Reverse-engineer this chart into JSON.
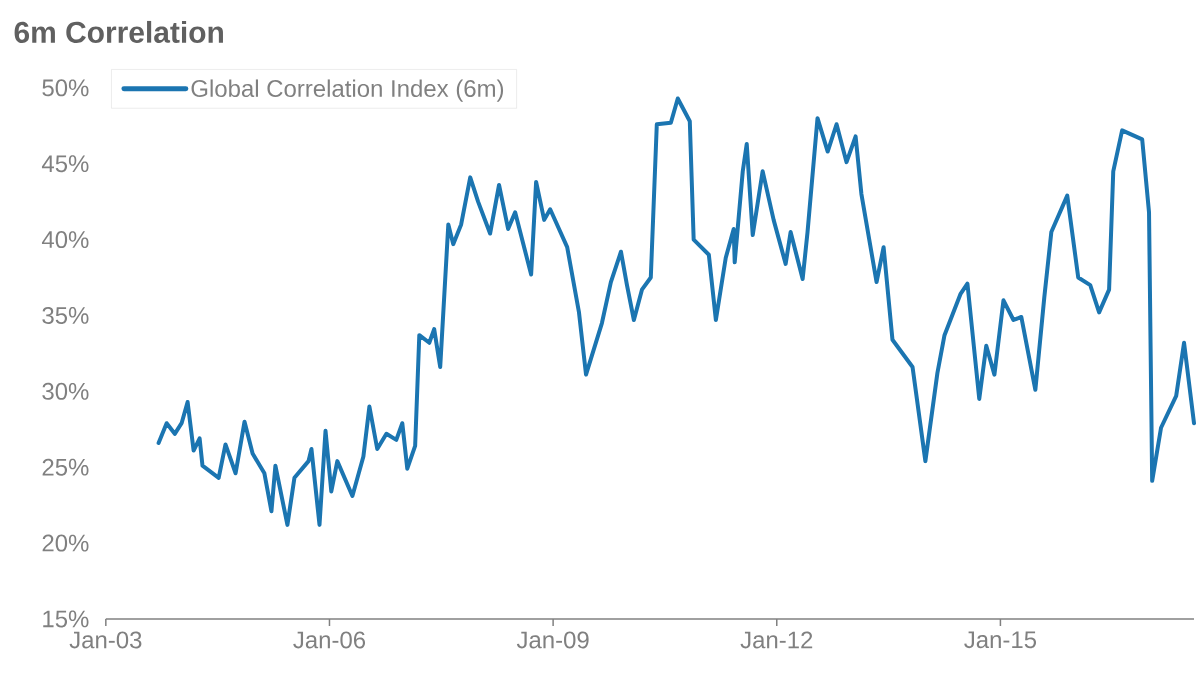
{
  "chart_data": {
    "type": "line",
    "title": "6m Correlation",
    "x": [
      "2003-09-16",
      "2003-10-25",
      "2003-12-04",
      "2004-01-07",
      "2004-02-06",
      "2004-03-05",
      "2004-04-04",
      "2004-04-18",
      "2004-07-06",
      "2004-08-09",
      "2004-09-28",
      "2004-11-11",
      "2004-12-20",
      "2005-02-17",
      "2005-03-21",
      "2005-04-10",
      "2005-06-08",
      "2005-07-12",
      "2005-09-20",
      "2005-10-04",
      "2005-11-13",
      "2005-12-12",
      "2006-01-10",
      "2006-02-09",
      "2006-04-22",
      "2006-06-15",
      "2006-07-14",
      "2006-08-22",
      "2006-10-06",
      "2006-11-24",
      "2006-12-23",
      "2007-01-17",
      "2007-02-25",
      "2007-03-15",
      "2007-05-03",
      "2007-05-27",
      "2007-06-26",
      "2007-08-05",
      "2007-08-29",
      "2007-10-07",
      "2007-11-21",
      "2007-12-29",
      "2008-02-27",
      "2008-04-10",
      "2008-05-24",
      "2008-06-28",
      "2008-09-15",
      "2008-10-09",
      "2008-11-18",
      "2008-12-17",
      "2009-03-09",
      "2009-05-06",
      "2009-06-10",
      "2009-08-27",
      "2009-10-10",
      "2009-11-29",
      "2009-12-28",
      "2010-02-01",
      "2010-03-10",
      "2010-04-23",
      "2010-05-22",
      "2010-07-30",
      "2010-09-03",
      "2010-11-01",
      "2010-11-20",
      "2011-02-03",
      "2011-03-07",
      "2011-04-25",
      "2011-06-03",
      "2011-06-08",
      "2011-07-17",
      "2011-08-06",
      "2011-09-05",
      "2011-10-23",
      "2011-12-16",
      "2012-02-14",
      "2012-03-08",
      "2012-05-06",
      "2012-05-30",
      "2012-07-18",
      "2012-09-07",
      "2012-10-20",
      "2012-12-08",
      "2013-01-22",
      "2013-02-20",
      "2013-05-03",
      "2013-06-07",
      "2013-07-20",
      "2013-10-27",
      "2013-12-29",
      "2014-02-27",
      "2014-04-01",
      "2014-06-18",
      "2014-07-22",
      "2014-09-19",
      "2014-10-23",
      "2014-12-02",
      "2015-01-16",
      "2015-03-04",
      "2015-04-12",
      "2015-06-20",
      "2015-08-03",
      "2015-09-07",
      "2015-11-24",
      "2016-01-17",
      "2016-03-15",
      "2016-04-28",
      "2016-06-16",
      "2016-07-06",
      "2016-08-19",
      "2016-11-26",
      "2016-12-29",
      "2017-01-14",
      "2017-02-27",
      "2017-05-10",
      "2017-06-18",
      "2017-08-06"
    ],
    "series": [
      {
        "name": "Global Correlation Index (6m)",
        "color": "#1b75b1",
        "values": [
          26.6,
          27.9,
          27.2,
          27.9,
          29.3,
          26.1,
          26.9,
          25.1,
          24.3,
          26.5,
          24.6,
          28.0,
          25.9,
          24.6,
          22.1,
          25.1,
          21.2,
          24.3,
          25.4,
          26.2,
          21.2,
          27.4,
          23.4,
          25.4,
          23.1,
          25.7,
          29.0,
          26.2,
          27.2,
          26.8,
          27.9,
          24.9,
          26.4,
          33.7,
          33.2,
          34.1,
          31.6,
          41.0,
          39.7,
          41.0,
          44.1,
          42.5,
          40.4,
          43.6,
          40.7,
          41.8,
          37.7,
          43.8,
          41.3,
          42.0,
          39.5,
          35.2,
          31.1,
          34.5,
          37.2,
          39.2,
          37.0,
          34.7,
          36.7,
          37.5,
          47.6,
          47.7,
          49.3,
          47.8,
          40.0,
          39.0,
          34.7,
          38.8,
          40.7,
          38.5,
          44.5,
          46.3,
          40.3,
          44.5,
          41.3,
          38.4,
          40.5,
          37.4,
          40.5,
          48.0,
          45.8,
          47.6,
          45.1,
          46.8,
          43.0,
          37.2,
          39.5,
          33.4,
          31.6,
          25.4,
          31.2,
          33.7,
          36.4,
          37.1,
          29.5,
          33.0,
          31.1,
          36.0,
          34.7,
          34.9,
          30.1,
          36.2,
          40.5,
          42.9,
          37.5,
          37.0,
          35.2,
          36.7,
          44.5,
          47.2,
          46.6,
          41.8,
          24.1,
          27.6,
          29.7,
          33.2,
          27.9
        ]
      }
    ],
    "xlim": [
      "2003-01-01",
      "2017-08-06"
    ],
    "xticks": [
      {
        "value": "2003-01",
        "label": "Jan-03"
      },
      {
        "value": "2006-01",
        "label": "Jan-06"
      },
      {
        "value": "2009-01",
        "label": "Jan-09"
      },
      {
        "value": "2012-01",
        "label": "Jan-12"
      },
      {
        "value": "2015-01",
        "label": "Jan-15"
      }
    ],
    "ylim": [
      15,
      50
    ],
    "yticks": [
      {
        "value": 15,
        "label": "15%"
      },
      {
        "value": 20,
        "label": "20%"
      },
      {
        "value": 25,
        "label": "25%"
      },
      {
        "value": 30,
        "label": "30%"
      },
      {
        "value": 35,
        "label": "35%"
      },
      {
        "value": 40,
        "label": "40%"
      },
      {
        "value": 45,
        "label": "45%"
      },
      {
        "value": 50,
        "label": "50%"
      }
    ],
    "grid": false,
    "legend": "top left",
    "marker": "none",
    "line_style": "solid"
  }
}
